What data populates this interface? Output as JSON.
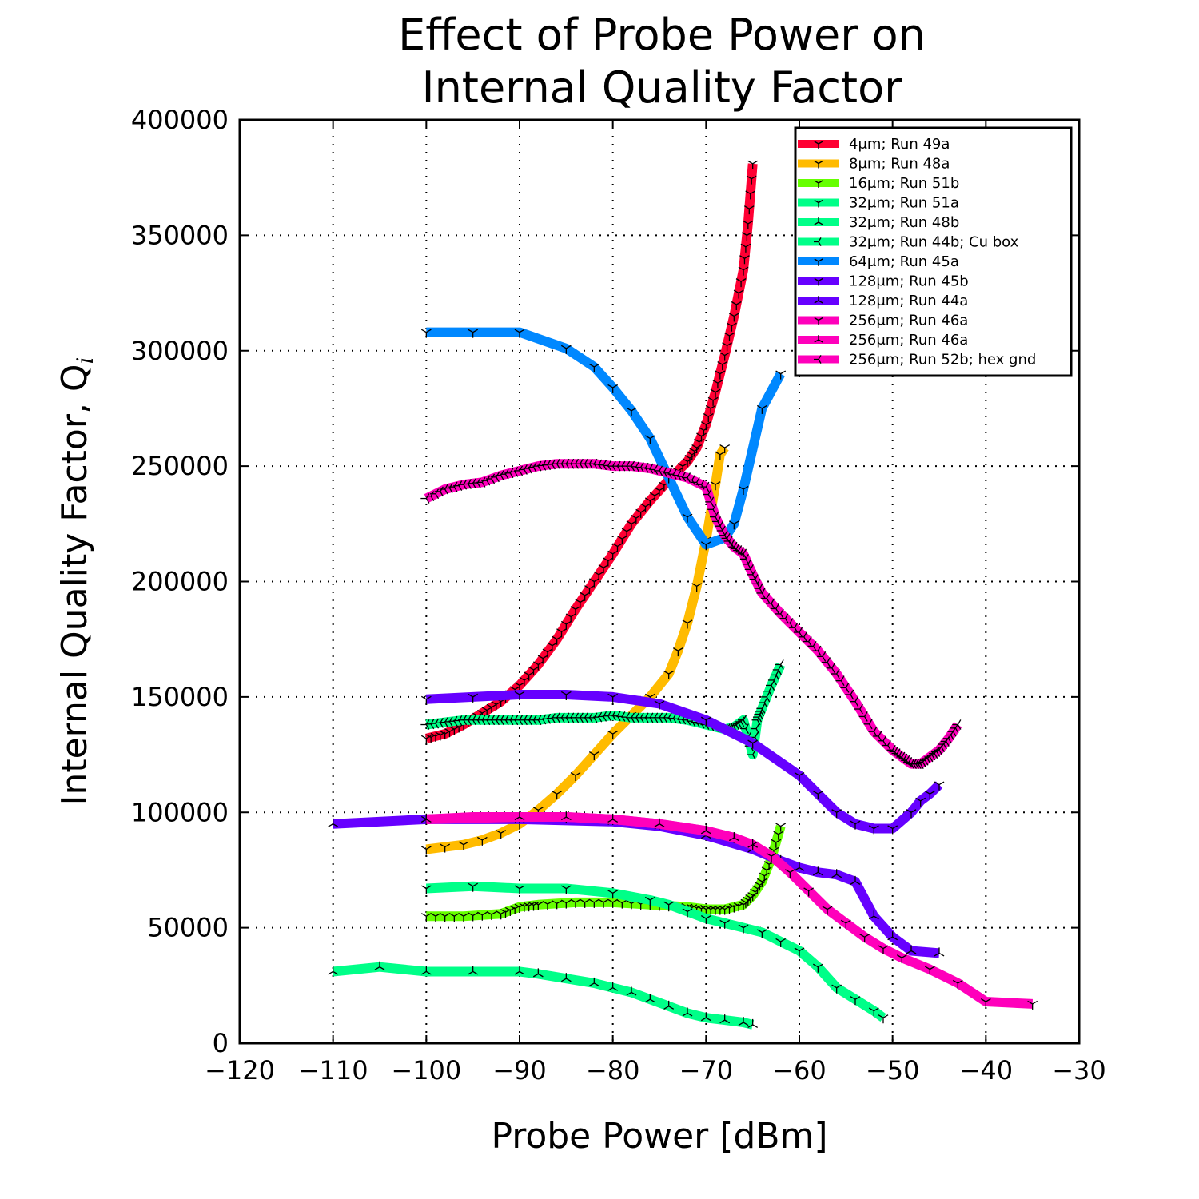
{
  "chart_data": {
    "type": "line",
    "title_line1": "Effect of Probe Power on",
    "title_line2": "Internal Quality Factor",
    "xlabel": "Probe Power [dBm]",
    "ylabel": "Internal Quality Factor, Q",
    "ylabel_sub": "i",
    "xlim": [
      -120,
      -30
    ],
    "ylim": [
      0,
      400000
    ],
    "xticks": [
      -120,
      -110,
      -100,
      -90,
      -80,
      -70,
      -60,
      -50,
      -40,
      -30
    ],
    "yticks": [
      0,
      50000,
      100000,
      150000,
      200000,
      250000,
      300000,
      350000,
      400000
    ],
    "xtick_labels": [
      "−120",
      "−110",
      "−100",
      "−90",
      "−80",
      "−70",
      "−60",
      "−50",
      "−40",
      "−30"
    ],
    "ytick_labels": [
      "0",
      "50000",
      "100000",
      "150000",
      "200000",
      "250000",
      "300000",
      "350000",
      "400000"
    ],
    "grid": true,
    "legend_position": "top-right",
    "series": [
      {
        "name": "4μm; Run 49a",
        "color": "#ff0033",
        "x": [
          -100,
          -98,
          -96,
          -94,
          -92,
          -90,
          -88,
          -86,
          -84,
          -82,
          -80,
          -78,
          -76,
          -74,
          -72,
          -71,
          -70,
          -69,
          -68,
          -67,
          -66,
          -65.5,
          -65
        ],
        "y": [
          132000,
          134000,
          138000,
          143000,
          148000,
          155000,
          164000,
          175000,
          188000,
          200000,
          212000,
          225000,
          235000,
          244000,
          252000,
          258000,
          268000,
          282000,
          298000,
          315000,
          335000,
          355000,
          381000
        ]
      },
      {
        "name": "8μm; Run 48a",
        "color": "#ffbb00",
        "x": [
          -100,
          -98,
          -96,
          -94,
          -92,
          -90,
          -88,
          -86,
          -84,
          -82,
          -80,
          -78,
          -76,
          -74,
          -73,
          -72,
          -71,
          -70,
          -69,
          -68.5,
          -68
        ],
        "y": [
          84000,
          85000,
          86000,
          88000,
          91000,
          95000,
          101000,
          108000,
          116000,
          125000,
          134000,
          142000,
          150000,
          160000,
          170000,
          182000,
          198000,
          218000,
          242000,
          255000,
          258000
        ]
      },
      {
        "name": "16μm; Run 51b",
        "color": "#66ff00",
        "x": [
          -100,
          -96,
          -92,
          -90,
          -88,
          -84,
          -80,
          -76,
          -72,
          -70,
          -68,
          -66,
          -65,
          -64,
          -63,
          -62
        ],
        "y": [
          55000,
          55000,
          56000,
          59000,
          60000,
          61000,
          61000,
          60000,
          59000,
          58000,
          58000,
          60000,
          64000,
          70000,
          80000,
          94000
        ]
      },
      {
        "name": "32μm; Run 51a",
        "color": "#00ff88",
        "x": [
          -100,
          -95,
          -90,
          -85,
          -80,
          -76,
          -74,
          -72,
          -70,
          -68,
          -66,
          -64,
          -62,
          -60,
          -58,
          -56,
          -54,
          -52,
          -51
        ],
        "y": [
          67000,
          68000,
          67000,
          67000,
          65000,
          62000,
          60000,
          57000,
          54000,
          52000,
          50000,
          48000,
          44000,
          40000,
          33000,
          24000,
          19000,
          14000,
          11000
        ]
      },
      {
        "name": "32μm; Run 48b",
        "color": "#00ff88",
        "x": [
          -110,
          -105,
          -100,
          -95,
          -90,
          -88,
          -85,
          -82,
          -80,
          -78,
          -76,
          -74,
          -72,
          -70,
          -68,
          -66,
          -65
        ],
        "y": [
          31000,
          33000,
          31000,
          31000,
          31000,
          30000,
          28000,
          26000,
          24000,
          22000,
          19000,
          16000,
          13000,
          11000,
          10000,
          9000,
          8000
        ]
      },
      {
        "name": "32μm; Run 44b; Cu box",
        "color": "#00ff88",
        "x": [
          -100,
          -98,
          -96,
          -94,
          -92,
          -90,
          -88,
          -86,
          -84,
          -82,
          -80,
          -78,
          -76,
          -74,
          -72,
          -70,
          -68,
          -67,
          -66,
          -65,
          -64.5,
          -64,
          -63,
          -62
        ],
        "y": [
          138000,
          139000,
          140000,
          140000,
          140000,
          140000,
          140000,
          141000,
          141000,
          141000,
          142000,
          141000,
          141000,
          141000,
          140000,
          138000,
          136000,
          137000,
          140000,
          125000,
          140000,
          145000,
          155000,
          164000
        ]
      },
      {
        "name": "64μm; Run 45a",
        "color": "#0088ff",
        "x": [
          -100,
          -95,
          -90,
          -85,
          -82,
          -80,
          -78,
          -76,
          -74,
          -72,
          -70,
          -68,
          -67,
          -66,
          -64,
          -62
        ],
        "y": [
          308000,
          308000,
          308000,
          301000,
          293000,
          284000,
          274000,
          262000,
          245000,
          228000,
          216000,
          219000,
          225000,
          240000,
          275000,
          290000
        ]
      },
      {
        "name": "128μm; Run 45b",
        "color": "#6600ff",
        "x": [
          -100,
          -95,
          -90,
          -85,
          -80,
          -75,
          -70,
          -65,
          -60,
          -58,
          -56,
          -54,
          -52,
          -50,
          -48,
          -47,
          -46,
          -45
        ],
        "y": [
          149000,
          150000,
          151000,
          151000,
          150000,
          147000,
          140000,
          130000,
          116000,
          108000,
          100000,
          95000,
          93000,
          93000,
          100000,
          105000,
          108000,
          112000
        ]
      },
      {
        "name": "128μm; Run 44a",
        "color": "#6600ff",
        "x": [
          -110,
          -100,
          -90,
          -80,
          -75,
          -70,
          -65,
          -62,
          -60,
          -58,
          -56,
          -54,
          -52,
          -50,
          -48,
          -45
        ],
        "y": [
          95000,
          97000,
          97000,
          96000,
          94000,
          90000,
          84000,
          79000,
          76000,
          74000,
          73000,
          70000,
          55000,
          46000,
          40000,
          39000
        ]
      },
      {
        "name": "256μm; Run 46a",
        "color": "#ff00bb",
        "x": [
          -100,
          -95,
          -90,
          -85,
          -80,
          -75,
          -70,
          -67,
          -65,
          -63,
          -61,
          -59,
          -57,
          -55,
          -53,
          -51,
          -49,
          -46,
          -43,
          -40,
          -35
        ],
        "y": [
          97000,
          98000,
          98000,
          98000,
          97000,
          95000,
          92000,
          89000,
          86000,
          81000,
          74000,
          66000,
          58000,
          52000,
          46000,
          41000,
          37000,
          32000,
          26000,
          18000,
          17000
        ]
      },
      {
        "name": "256μm; Run 46a",
        "color": "#ff00bb",
        "x": [
          -100,
          -90,
          -85,
          -80,
          -75,
          -70,
          -67,
          -65
        ],
        "y": [
          97000,
          98000,
          98000,
          97000,
          95000,
          92000,
          89000,
          86000
        ]
      },
      {
        "name": "256μm; Run 52b; hex gnd",
        "color": "#ff00bb",
        "x": [
          -100,
          -98,
          -96,
          -94,
          -92,
          -90,
          -88,
          -86,
          -84,
          -82,
          -80,
          -78,
          -76,
          -74,
          -72,
          -70,
          -69,
          -68,
          -67,
          -66,
          -65,
          -64,
          -62,
          -60,
          -58,
          -56,
          -54,
          -52,
          -50,
          -49,
          -48,
          -47,
          -46,
          -45,
          -44,
          -43
        ],
        "y": [
          236000,
          240000,
          242000,
          243000,
          246000,
          248000,
          250000,
          251000,
          251000,
          251000,
          250000,
          250000,
          249000,
          247000,
          245000,
          241000,
          228000,
          220000,
          215000,
          212000,
          203000,
          195000,
          186000,
          178000,
          170000,
          160000,
          148000,
          135000,
          127000,
          124000,
          121000,
          121000,
          124000,
          127000,
          132000,
          138000
        ]
      }
    ]
  }
}
